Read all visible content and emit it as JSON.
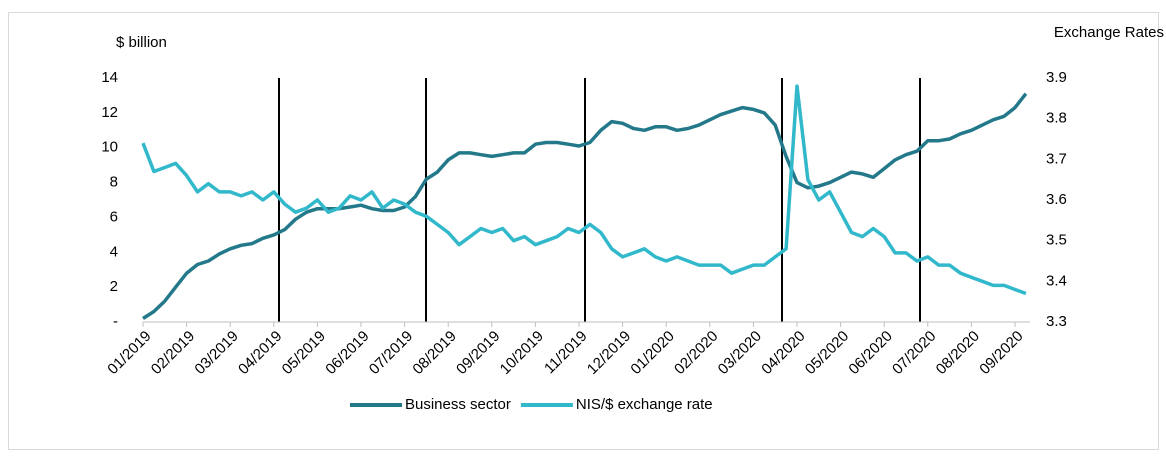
{
  "chart_data": {
    "type": "line",
    "y_label": "$ billion",
    "y2_label": "Exchange Rates",
    "categories": [
      "01/2019",
      null,
      null,
      null,
      "02/2019",
      null,
      null,
      null,
      "03/2019",
      null,
      null,
      null,
      "04/2019",
      null,
      null,
      null,
      "05/2019",
      null,
      null,
      null,
      "06/2019",
      null,
      null,
      null,
      "07/2019",
      null,
      null,
      null,
      "08/2019",
      null,
      null,
      null,
      "09/2019",
      null,
      null,
      null,
      "10/2019",
      null,
      null,
      null,
      "11/2019",
      null,
      null,
      null,
      "12/2019",
      null,
      null,
      null,
      "01/2020",
      null,
      null,
      null,
      "02/2020",
      null,
      null,
      null,
      "03/2020",
      null,
      null,
      null,
      "04/2020",
      null,
      null,
      null,
      "05/2020",
      null,
      null,
      null,
      "06/2020",
      null,
      null,
      null,
      "07/2020",
      null,
      null,
      null,
      "08/2020",
      null,
      null,
      null,
      "09/2020",
      null
    ],
    "series": [
      {
        "name": "Business sector",
        "color": "#23798a",
        "values": [
          0.2,
          0.6,
          1.2,
          2.0,
          2.8,
          3.3,
          3.5,
          3.9,
          4.2,
          4.4,
          4.5,
          4.8,
          5.0,
          5.3,
          5.9,
          6.3,
          6.5,
          6.5,
          6.5,
          6.6,
          6.7,
          6.5,
          6.4,
          6.4,
          6.6,
          7.2,
          8.2,
          8.6,
          9.3,
          9.7,
          9.7,
          9.6,
          9.5,
          9.6,
          9.7,
          9.7,
          10.2,
          10.3,
          10.3,
          10.2,
          10.1,
          10.3,
          11.0,
          11.5,
          11.4,
          11.1,
          11.0,
          11.2,
          11.2,
          11.0,
          11.1,
          11.3,
          11.6,
          11.9,
          12.1,
          12.3,
          12.2,
          12.0,
          11.3,
          9.5,
          8.0,
          7.7,
          7.8,
          8.0,
          8.3,
          8.6,
          8.5,
          8.3,
          8.8,
          9.3,
          9.6,
          9.8,
          10.4,
          10.4,
          10.5,
          10.8,
          11.0,
          11.3,
          11.6,
          11.8,
          12.3,
          13.1
        ]
      },
      {
        "name": "NIS/$ exchange rate",
        "color": "#32b8cb",
        "axis": "y2",
        "values": [
          3.74,
          3.67,
          3.68,
          3.69,
          3.66,
          3.62,
          3.64,
          3.62,
          3.62,
          3.61,
          3.62,
          3.6,
          3.62,
          3.59,
          3.57,
          3.58,
          3.6,
          3.57,
          3.58,
          3.61,
          3.6,
          3.62,
          3.58,
          3.6,
          3.59,
          3.57,
          3.56,
          3.54,
          3.52,
          3.49,
          3.51,
          3.53,
          3.52,
          3.53,
          3.5,
          3.51,
          3.49,
          3.5,
          3.51,
          3.53,
          3.52,
          3.54,
          3.52,
          3.48,
          3.46,
          3.47,
          3.48,
          3.46,
          3.45,
          3.46,
          3.45,
          3.44,
          3.44,
          3.44,
          3.42,
          3.43,
          3.44,
          3.44,
          3.46,
          3.48,
          3.88,
          3.65,
          3.6,
          3.62,
          3.57,
          3.52,
          3.51,
          3.53,
          3.51,
          3.47,
          3.47,
          3.45,
          3.46,
          3.44,
          3.44,
          3.42,
          3.41,
          3.4,
          3.39,
          3.39,
          3.38,
          3.37
        ]
      }
    ],
    "ylim": [
      0,
      14
    ],
    "yticks": [
      {
        "value": 0,
        "label": "-"
      },
      2,
      4,
      6,
      8,
      10,
      12,
      14
    ],
    "y2lim": [
      3.3,
      3.9
    ],
    "y2ticks": [
      3.3,
      3.4,
      3.5,
      3.6,
      3.7,
      3.8,
      3.9
    ],
    "legend": "bottom"
  }
}
